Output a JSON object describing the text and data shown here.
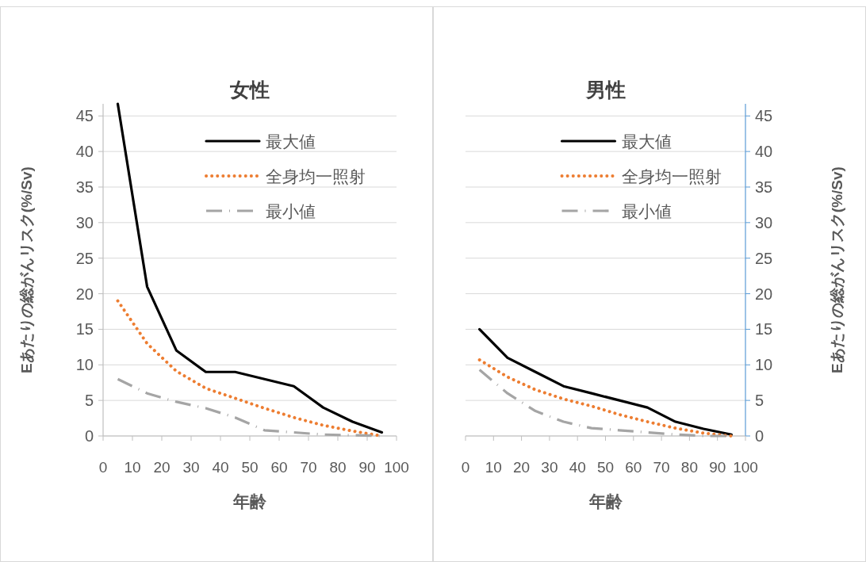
{
  "chart_data": [
    {
      "type": "line",
      "title": "女性",
      "xlabel": "年齢",
      "ylabel": "Eあたりの総がんリスク(%/Sv)",
      "xlim": [
        0,
        100
      ],
      "xticks": [
        0,
        10,
        20,
        30,
        40,
        50,
        60,
        70,
        80,
        90,
        100
      ],
      "ylim": [
        0,
        46.7
      ],
      "yticks": [
        0,
        5,
        10,
        15,
        20,
        25,
        30,
        35,
        40,
        45
      ],
      "grid": "y",
      "legend": "top right",
      "x": [
        5,
        15,
        25,
        35,
        45,
        55,
        65,
        75,
        85,
        95
      ],
      "series": [
        {
          "name": "最大値",
          "color": "#000000",
          "line_style": "solid",
          "values": [
            46.7,
            21,
            12,
            9,
            9,
            8,
            7,
            4,
            2,
            0.5
          ]
        },
        {
          "name": "全身均一照射",
          "color": "#ed7d31",
          "line_style": "dotted",
          "values": [
            19,
            13,
            9.1,
            6.7,
            5.3,
            3.9,
            2.6,
            1.5,
            0.7,
            0
          ]
        },
        {
          "name": "最小値",
          "color": "#a5a5a5",
          "line_style": "dashed",
          "values": [
            8,
            6,
            4.8,
            3.9,
            2.6,
            0.8,
            0.5,
            0.2,
            0.1,
            0
          ]
        }
      ]
    },
    {
      "type": "line",
      "title": "男性",
      "xlabel": "年齢",
      "y2label": "Eあたりの総がんリスク(%/Sv)",
      "xlim": [
        0,
        100
      ],
      "xticks": [
        0,
        10,
        20,
        30,
        40,
        50,
        60,
        70,
        80,
        90,
        100
      ],
      "y2lim": [
        0,
        46.7
      ],
      "y2ticks": [
        0,
        5,
        10,
        15,
        20,
        25,
        30,
        35,
        40,
        45
      ],
      "grid": "y",
      "legend": "top right",
      "x": [
        5,
        15,
        25,
        35,
        45,
        55,
        65,
        75,
        85,
        95
      ],
      "series": [
        {
          "name": "最大値",
          "color": "#000000",
          "line_style": "solid",
          "axis": "y2",
          "values": [
            15,
            11,
            9,
            7,
            6,
            5,
            4,
            2,
            1,
            0.2
          ]
        },
        {
          "name": "全身均一照射",
          "color": "#ed7d31",
          "line_style": "dotted",
          "axis": "y2",
          "values": [
            10.7,
            8.3,
            6.5,
            5.2,
            4.2,
            3,
            2,
            1.1,
            0.4,
            0
          ]
        },
        {
          "name": "最小値",
          "color": "#a5a5a5",
          "line_style": "dashed",
          "axis": "y2",
          "values": [
            9.3,
            6,
            3.5,
            2,
            1.1,
            0.8,
            0.5,
            0.2,
            0,
            0
          ]
        }
      ]
    }
  ]
}
